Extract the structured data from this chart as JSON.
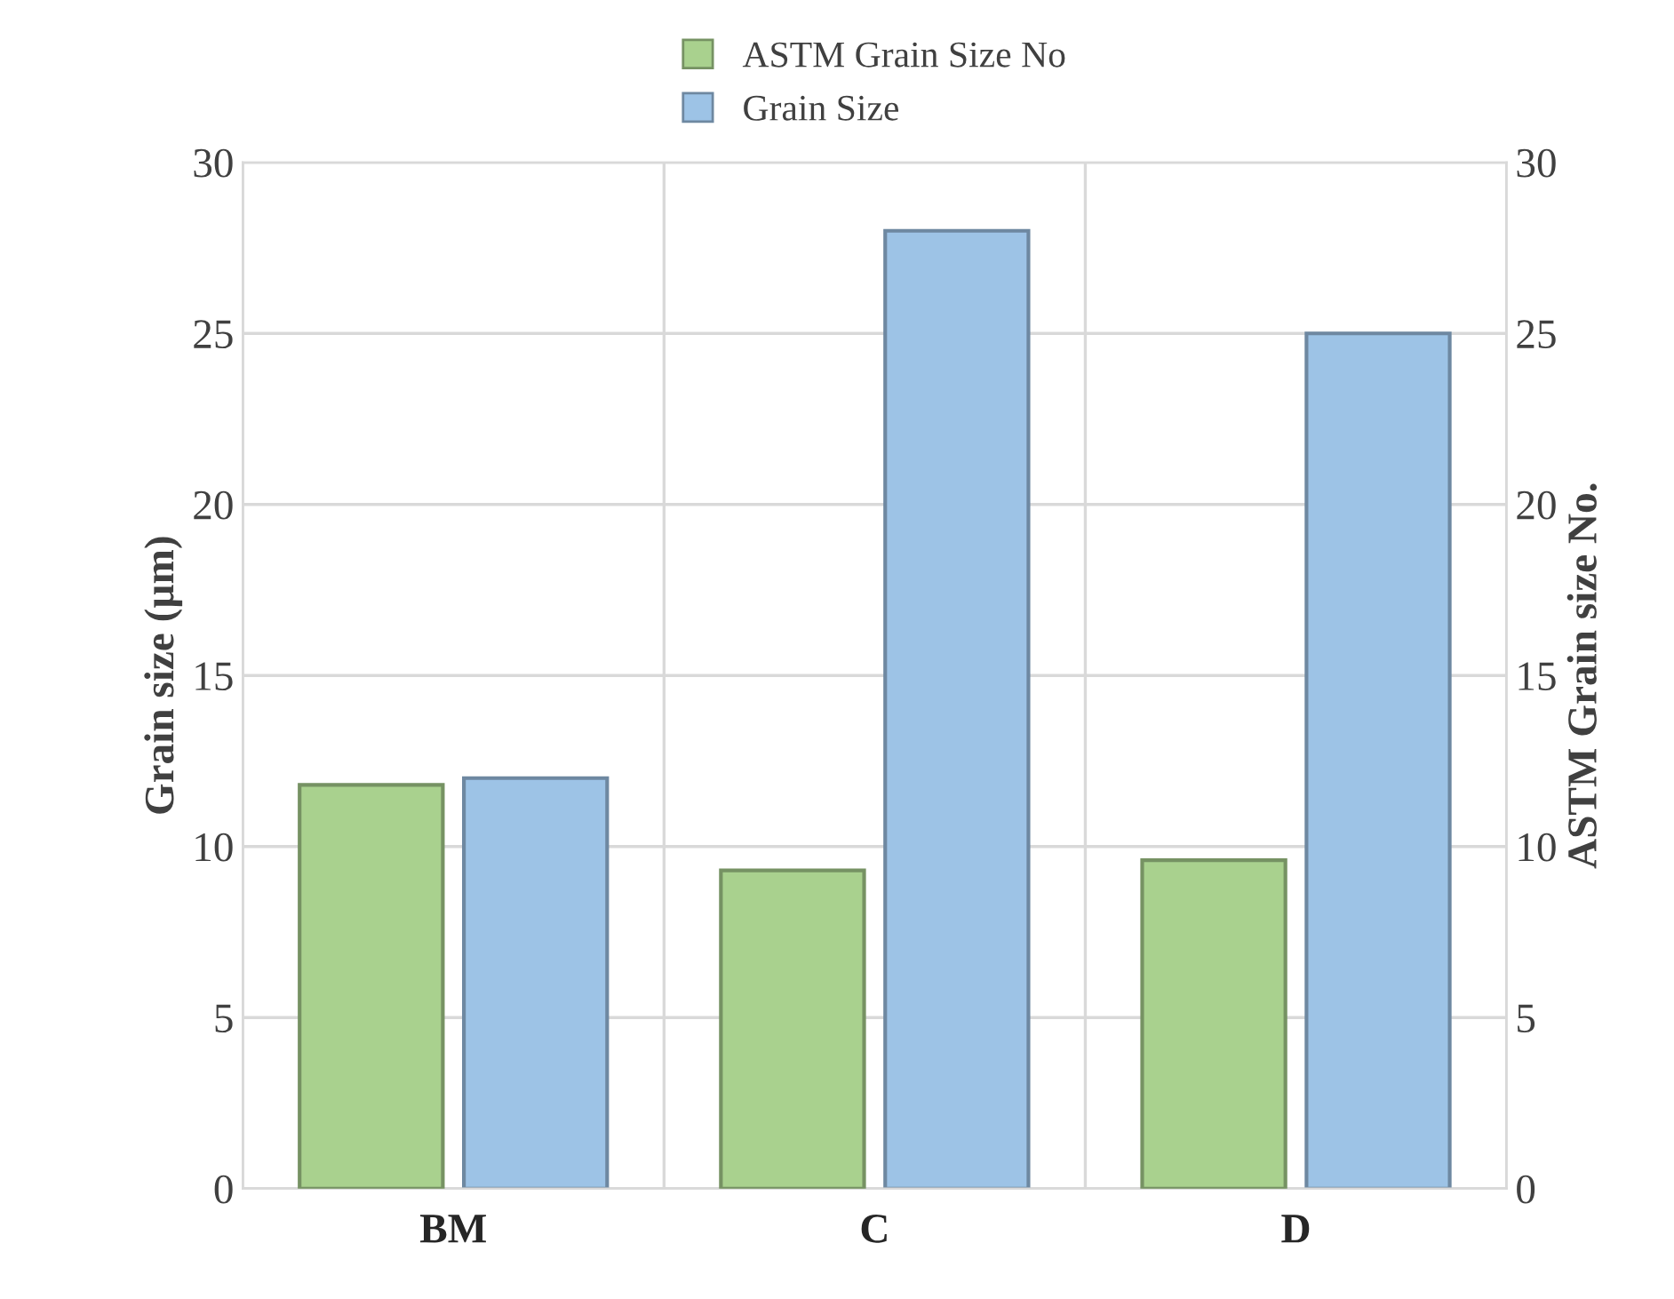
{
  "chart_data": {
    "type": "bar",
    "categories": [
      "BM",
      "C",
      "D"
    ],
    "series": [
      {
        "name": "ASTM Grain Size No",
        "color": "#a9d18e",
        "values": [
          11.8,
          9.3,
          9.6
        ],
        "axis": "y2"
      },
      {
        "name": "Grain Size",
        "color": "#9dc3e6",
        "values": [
          12,
          28,
          25
        ]
      }
    ],
    "ylabel": "Grain size (µm)",
    "y2label": "ASTM Grain size No.",
    "ylim": [
      0,
      30
    ],
    "yticks": [
      0,
      5,
      10,
      15,
      20,
      25,
      30
    ],
    "y2lim": [
      0,
      30
    ],
    "y2ticks": [
      0,
      5,
      10,
      15,
      20,
      25,
      30
    ],
    "grid": true,
    "legend": "top"
  }
}
